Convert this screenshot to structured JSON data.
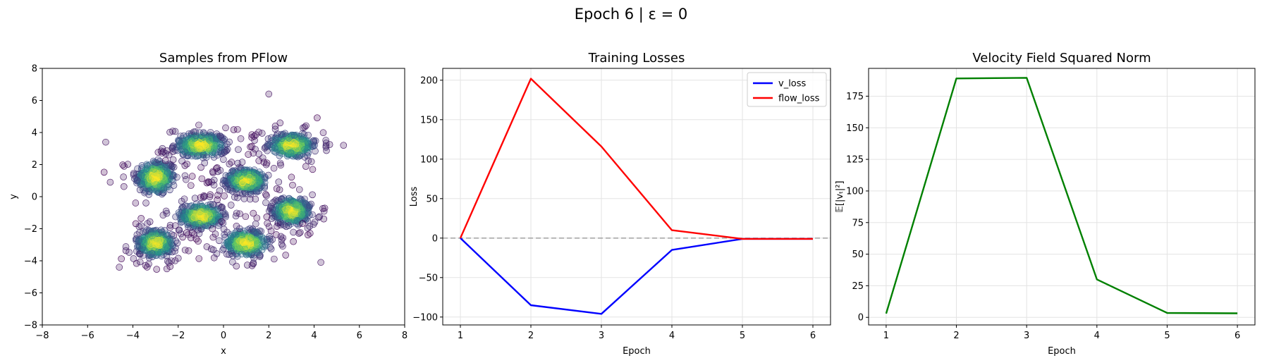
{
  "figure": {
    "suptitle": "Epoch 6 | ε = 0"
  },
  "chart_data": [
    {
      "type": "scatter",
      "title": "Samples from PFlow",
      "xlabel": "x",
      "ylabel": "y",
      "xlim": [
        -8,
        8
      ],
      "ylim": [
        -8,
        8
      ],
      "xticks": [
        -8,
        -6,
        -4,
        -2,
        0,
        2,
        4,
        6,
        8
      ],
      "yticks": [
        -8,
        -6,
        -4,
        -2,
        0,
        2,
        4,
        6,
        8
      ],
      "grid": false,
      "colormap": "viridis",
      "point_alpha": 0.25,
      "clusters": [
        {
          "cx": -3.0,
          "cy": 1.2,
          "sx": 0.45,
          "sy": 0.55
        },
        {
          "cx": -1.0,
          "cy": 3.2,
          "sx": 0.6,
          "sy": 0.4
        },
        {
          "cx": 3.0,
          "cy": 3.2,
          "sx": 0.55,
          "sy": 0.4
        },
        {
          "cx": 1.0,
          "cy": 1.0,
          "sx": 0.5,
          "sy": 0.4
        },
        {
          "cx": -1.0,
          "cy": -1.2,
          "sx": 0.55,
          "sy": 0.4
        },
        {
          "cx": 3.0,
          "cy": -0.9,
          "sx": 0.45,
          "sy": 0.45
        },
        {
          "cx": -3.0,
          "cy": -2.9,
          "sx": 0.45,
          "sy": 0.45
        },
        {
          "cx": 1.0,
          "cy": -2.9,
          "sx": 0.55,
          "sy": 0.45
        }
      ],
      "points_per_cluster": 320,
      "outliers": [
        [
          2.0,
          6.4
        ],
        [
          -5.2,
          3.4
        ],
        [
          5.3,
          3.2
        ],
        [
          -4.6,
          -4.4
        ],
        [
          4.3,
          -4.1
        ],
        [
          -5.0,
          0.9
        ],
        [
          -2.5,
          -4.5
        ],
        [
          2.5,
          4.6
        ]
      ]
    },
    {
      "type": "line",
      "title": "Training Losses",
      "xlabel": "Epoch",
      "ylabel": "Loss",
      "xlim": [
        0.75,
        6.25
      ],
      "ylim": [
        -110,
        215
      ],
      "xticks": [
        1,
        2,
        3,
        4,
        5,
        6
      ],
      "yticks": [
        -100,
        -50,
        0,
        50,
        100,
        150,
        200
      ],
      "grid": true,
      "legend": "top-right",
      "x": [
        1,
        2,
        3,
        4,
        5,
        6
      ],
      "series": [
        {
          "name": "v_loss",
          "color": "#0000ff",
          "values": [
            0,
            -85,
            -96,
            -15,
            -1,
            -1
          ]
        },
        {
          "name": "flow_loss",
          "color": "#ff0000",
          "values": [
            0,
            202,
            116,
            10,
            -1,
            -1
          ]
        }
      ],
      "reference_line": {
        "y": 0,
        "style": "dashed",
        "color": "#9a9a9a"
      }
    },
    {
      "type": "line",
      "title": "Velocity Field Squared Norm",
      "xlabel": "Epoch",
      "ylabel": "𝔼[|vₜ|²]",
      "xlim": [
        0.75,
        6.25
      ],
      "ylim": [
        -6,
        197
      ],
      "xticks": [
        1,
        2,
        3,
        4,
        5,
        6
      ],
      "yticks": [
        0,
        25,
        50,
        75,
        100,
        125,
        150,
        175
      ],
      "grid": true,
      "x": [
        1,
        2,
        3,
        4,
        5,
        6
      ],
      "series": [
        {
          "color": "#008000",
          "values": [
            3,
            189,
            189.5,
            30,
            3.5,
            3.2
          ]
        }
      ]
    }
  ]
}
